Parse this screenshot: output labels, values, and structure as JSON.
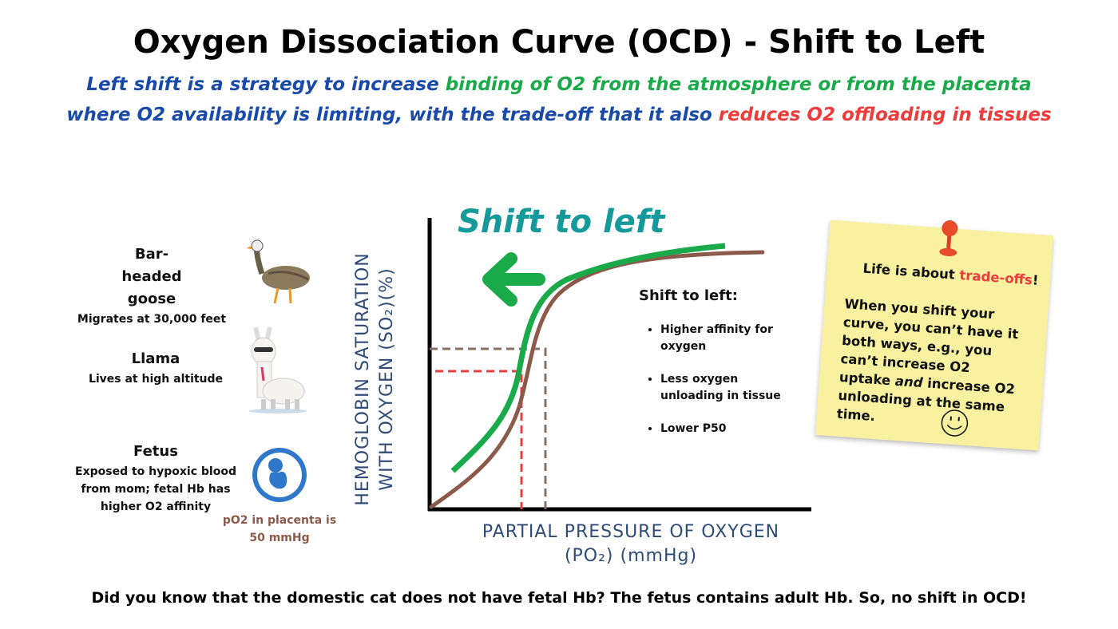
{
  "title": "Oxygen Dissociation Curve (OCD) - Shift to Left",
  "subtitle": {
    "line1_part1": "Left shift is a strategy to increase ",
    "line1_part2": "binding of O2 from the atmosphere or from the placenta",
    "line2_part1": "where O2 availability is limiting, with the trade-off that it also ",
    "line2_part2": "reduces O2 offloading in tissues"
  },
  "colors": {
    "blue": "#1a4aa8",
    "green": "#1aaa4a",
    "red": "#ee3b3b",
    "teal": "#16999a",
    "brown": "#8b5a4a",
    "note": "#f8f1a0"
  },
  "examples": [
    {
      "name": "Bar-headed goose",
      "desc": "Migrates at 30,000 feet",
      "icon": "goose-icon"
    },
    {
      "name": "Llama",
      "desc": "Lives at high altitude",
      "icon": "llama-icon"
    },
    {
      "name": "Fetus",
      "desc": "Exposed to hypoxic blood from mom; fetal Hb has higher O2 affinity",
      "icon": "fetus-icon"
    }
  ],
  "placenta_note": "pO2 in placenta is 50 mmHg",
  "graph": {
    "heading": "Shift to left",
    "y_label_line1": "HEMOGLOBIN SATURATION",
    "y_label_line2": "WITH OXYGEN (SO₂)(%)",
    "x_label_line1": "PARTIAL PRESSURE OF OXYGEN",
    "x_label_line2": "(PO₂) (mmHg)",
    "curves": [
      "left-shifted (green)",
      "normal (brown)"
    ],
    "box_title": "Shift to left:",
    "bullets": [
      "Higher affinity for oxygen",
      "Less oxygen unloading in tissue",
      "Lower P50"
    ]
  },
  "sticky_note": {
    "line1_part1": "Life is about ",
    "line1_part2": "trade-offs",
    "line1_part3": "!",
    "body_part1": "When you shift your curve, you can’t have it both ways, e.g., you can’t increase O2 uptake ",
    "body_italic": "and",
    "body_part2": " increase O2 unloading at the same time."
  },
  "footer": "Did you know that the domestic cat does not have fetal Hb? The fetus contains adult Hb. So, no shift in OCD!"
}
